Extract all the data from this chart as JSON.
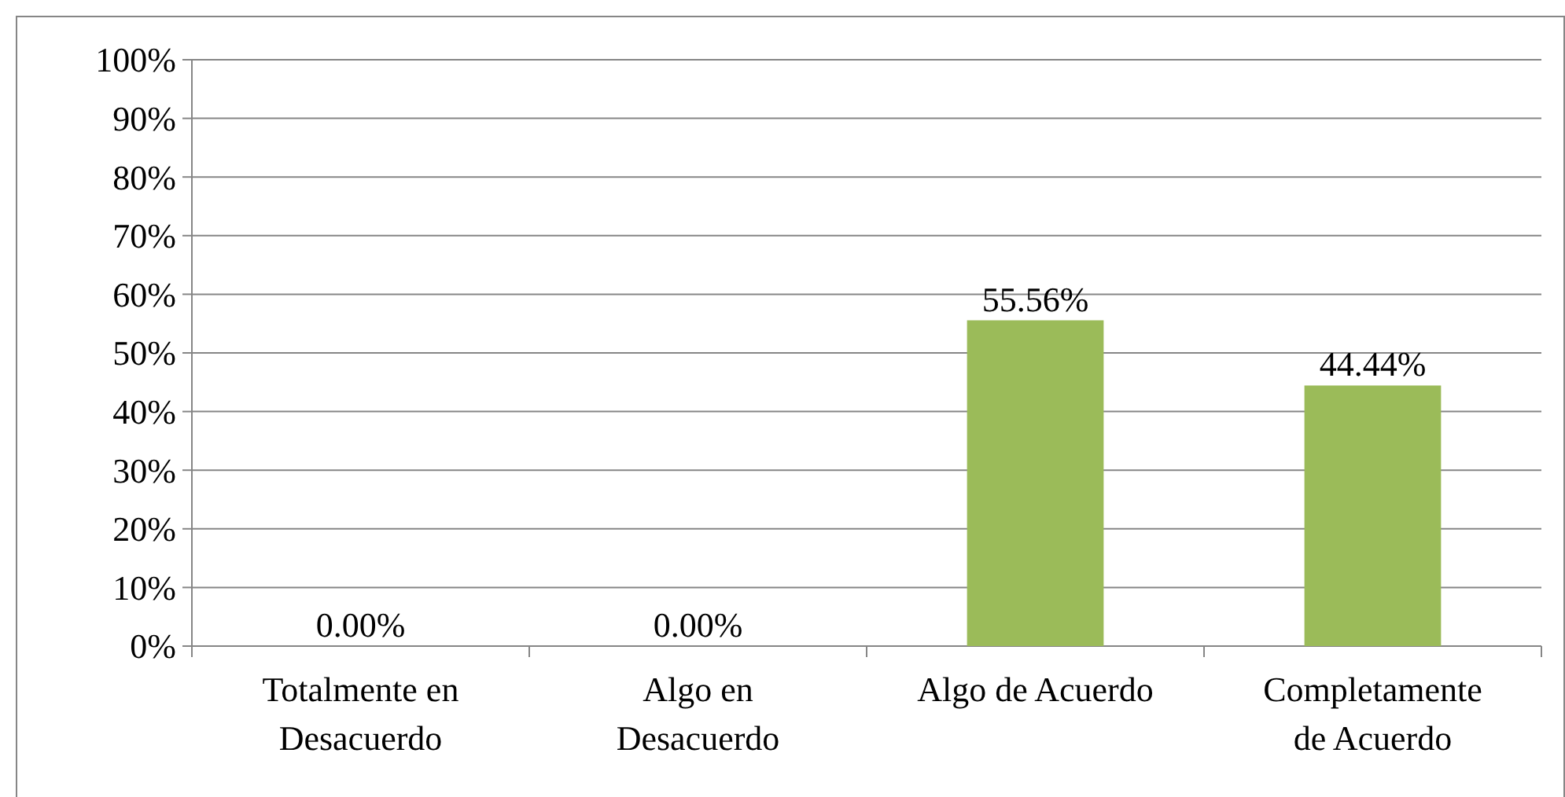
{
  "chart_data": {
    "type": "bar",
    "categories": [
      "Totalmente en Desacuerdo",
      "Algo en Desacuerdo",
      "Algo de Acuerdo",
      "Completamente de Acuerdo"
    ],
    "values": [
      0,
      0,
      55.56,
      44.44
    ],
    "color": "#9bbb59",
    "value_labels": [
      "0.00%",
      "0.00%",
      "55.56%",
      "44.44%"
    ],
    "ylim": [
      0,
      100
    ],
    "yticks": [
      {
        "value": 0,
        "label": "0%"
      },
      {
        "value": 10,
        "label": "10%"
      },
      {
        "value": 20,
        "label": "20%"
      },
      {
        "value": 30,
        "label": "30%"
      },
      {
        "value": 40,
        "label": "40%"
      },
      {
        "value": 50,
        "label": "50%"
      },
      {
        "value": 60,
        "label": "60%"
      },
      {
        "value": 70,
        "label": "70%"
      },
      {
        "value": 80,
        "label": "80%"
      },
      {
        "value": 90,
        "label": "90%"
      },
      {
        "value": 100,
        "label": "100%"
      }
    ],
    "grid": "y"
  }
}
